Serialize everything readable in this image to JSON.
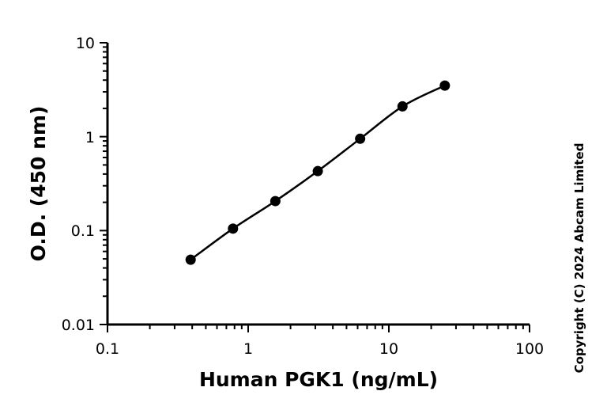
{
  "chart_data": {
    "type": "scatter",
    "xlabel": "Human PGK1 (ng/mL)",
    "ylabel": "O.D. (450 nm)",
    "xscale": "log",
    "yscale": "log",
    "xlim": [
      0.1,
      100
    ],
    "ylim": [
      0.01,
      10
    ],
    "x_ticks": [
      "0.1",
      "1",
      "10",
      "100"
    ],
    "y_ticks": [
      "0.01",
      "0.1",
      "1",
      "10"
    ],
    "grid": false,
    "legend": "none",
    "series": [
      {
        "x": [
          0.39,
          0.78,
          1.56,
          3.125,
          6.25,
          12.5,
          25
        ],
        "y": [
          0.049,
          0.105,
          0.206,
          0.43,
          0.95,
          2.1,
          3.5
        ],
        "color": "#000000",
        "marker": "circle",
        "fit_line": true
      }
    ]
  },
  "copyright": "Copyright (C) 2024 Abcam Limited"
}
